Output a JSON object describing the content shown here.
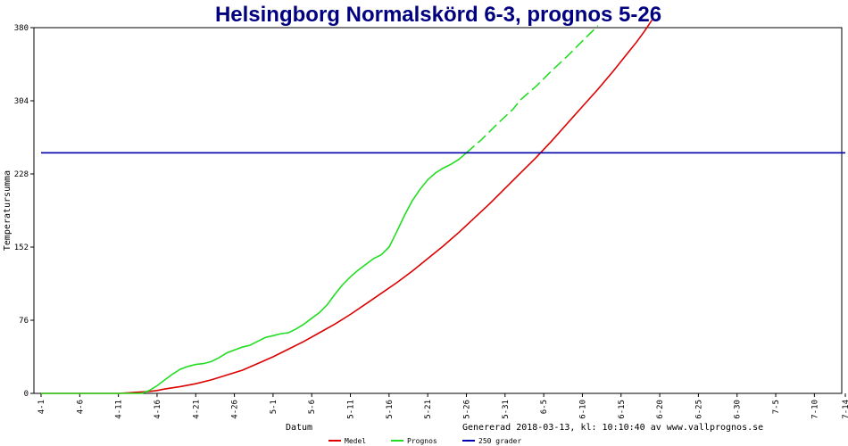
{
  "chart_data": {
    "type": "line",
    "title": "Helsingborg Normalskörd 6-3, prognos 5-26",
    "xlabel": "Datum",
    "ylabel": "Temperatursumma",
    "footer": "Genererad 2018-03-13, kl: 10:10:40 av www.vallprognos.se",
    "x_ticks": [
      "4-1",
      "4-6",
      "4-11",
      "4-16",
      "4-21",
      "4-26",
      "5-1",
      "5-6",
      "5-11",
      "5-16",
      "5-21",
      "5-26",
      "5-31",
      "6-5",
      "6-10",
      "6-15",
      "6-20",
      "6-25",
      "6-30",
      "7-5",
      "7-10",
      "7-14"
    ],
    "x_tick_days": [
      0,
      5,
      10,
      15,
      20,
      25,
      30,
      35,
      40,
      45,
      50,
      55,
      60,
      65,
      70,
      75,
      80,
      85,
      90,
      95,
      100,
      104
    ],
    "y_ticks": [
      "0",
      "76",
      "152",
      "228",
      "304",
      "380"
    ],
    "ylim": [
      0,
      380
    ],
    "xlim_days": [
      0,
      104
    ],
    "series": [
      {
        "name": "Medel",
        "color": "#dd0000",
        "style": "solid",
        "points": [
          [
            0,
            0
          ],
          [
            5,
            0
          ],
          [
            10,
            0
          ],
          [
            11,
            0.5
          ],
          [
            12,
            1
          ],
          [
            13,
            1.5
          ],
          [
            14,
            2
          ],
          [
            15,
            3
          ],
          [
            16,
            4.5
          ],
          [
            18,
            7
          ],
          [
            20,
            10
          ],
          [
            22,
            14
          ],
          [
            24,
            19
          ],
          [
            26,
            24
          ],
          [
            28,
            31
          ],
          [
            30,
            38
          ],
          [
            32,
            46
          ],
          [
            34,
            54
          ],
          [
            36,
            63
          ],
          [
            38,
            72
          ],
          [
            40,
            82
          ],
          [
            42,
            93
          ],
          [
            44,
            104
          ],
          [
            46,
            115
          ],
          [
            48,
            127
          ],
          [
            50,
            140
          ],
          [
            52,
            153
          ],
          [
            54,
            167
          ],
          [
            56,
            182
          ],
          [
            58,
            197
          ],
          [
            60,
            213
          ],
          [
            62,
            229
          ],
          [
            64,
            245
          ],
          [
            66,
            262
          ],
          [
            68,
            280
          ],
          [
            70,
            298
          ],
          [
            72,
            316
          ],
          [
            74,
            335
          ],
          [
            76,
            355
          ],
          [
            77,
            365
          ],
          [
            78,
            376
          ],
          [
            79,
            388
          ]
        ]
      },
      {
        "name": "Prognos",
        "color": "#22dd22",
        "style": "solid",
        "points": [
          [
            0,
            0
          ],
          [
            10,
            0
          ],
          [
            13,
            0
          ],
          [
            14,
            3
          ],
          [
            15,
            8
          ],
          [
            16,
            14
          ],
          [
            17,
            20
          ],
          [
            18,
            25
          ],
          [
            19,
            28
          ],
          [
            20,
            30
          ],
          [
            21,
            31
          ],
          [
            22,
            33
          ],
          [
            23,
            37
          ],
          [
            24,
            42
          ],
          [
            25,
            45
          ],
          [
            26,
            48
          ],
          [
            27,
            50
          ],
          [
            28,
            54
          ],
          [
            29,
            58
          ],
          [
            30,
            60
          ],
          [
            31,
            62
          ],
          [
            32,
            63
          ],
          [
            33,
            67
          ],
          [
            34,
            72
          ],
          [
            35,
            78
          ],
          [
            36,
            84
          ],
          [
            37,
            92
          ],
          [
            38,
            103
          ],
          [
            39,
            113
          ],
          [
            40,
            121
          ],
          [
            41,
            128
          ],
          [
            42,
            134
          ],
          [
            43,
            140
          ],
          [
            44,
            144
          ],
          [
            45,
            152
          ],
          [
            46,
            168
          ],
          [
            47,
            185
          ],
          [
            48,
            200
          ],
          [
            49,
            212
          ],
          [
            50,
            222
          ],
          [
            51,
            229
          ],
          [
            52,
            234
          ],
          [
            53,
            238
          ],
          [
            54,
            243
          ],
          [
            55,
            250
          ]
        ]
      },
      {
        "name": "Prognos",
        "color": "#22dd22",
        "style": "dashed",
        "points": [
          [
            55,
            250
          ],
          [
            57,
            264
          ],
          [
            59,
            280
          ],
          [
            61,
            295
          ],
          [
            62,
            305
          ],
          [
            64,
            319
          ],
          [
            66,
            335
          ],
          [
            68,
            350
          ],
          [
            69,
            358
          ],
          [
            70,
            366
          ],
          [
            71,
            374
          ],
          [
            72,
            382
          ]
        ]
      },
      {
        "name": "250 grader",
        "color": "#0000aa",
        "style": "solid",
        "points": [
          [
            0,
            250
          ],
          [
            104,
            250
          ]
        ]
      }
    ],
    "legend": [
      {
        "label": "Medel",
        "color": "#dd0000"
      },
      {
        "label": "Prognos",
        "color": "#22dd22"
      },
      {
        "label": "250 grader",
        "color": "#0000aa"
      }
    ],
    "legend_position": "bottom",
    "grid": false
  }
}
